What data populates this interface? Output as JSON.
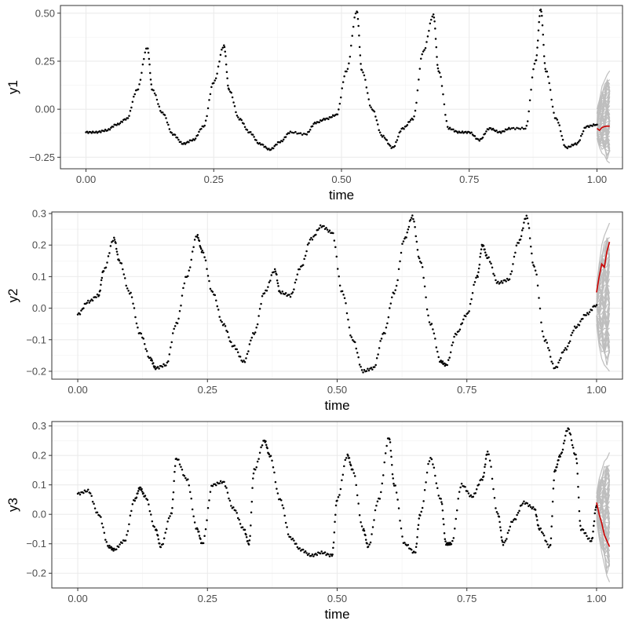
{
  "chart_data": [
    {
      "type": "line",
      "xlabel": "time",
      "ylabel": "y1",
      "xlim": [
        -0.05,
        1.05
      ],
      "ylim": [
        -0.31,
        0.54
      ],
      "x_ticks": [
        "0.00",
        "0.25",
        "0.50",
        "0.75",
        "1.00"
      ],
      "y_ticks": [
        "-0.25",
        "0.00",
        "0.25",
        "0.50"
      ],
      "grid": true,
      "observed_points": [
        [
          0.0,
          -0.12
        ],
        [
          0.02,
          -0.12
        ],
        [
          0.04,
          -0.11
        ],
        [
          0.06,
          -0.08
        ],
        [
          0.08,
          -0.05
        ],
        [
          0.1,
          0.1
        ],
        [
          0.12,
          0.32
        ],
        [
          0.13,
          0.1
        ],
        [
          0.15,
          -0.02
        ],
        [
          0.17,
          -0.13
        ],
        [
          0.19,
          -0.18
        ],
        [
          0.21,
          -0.16
        ],
        [
          0.23,
          -0.09
        ],
        [
          0.25,
          0.14
        ],
        [
          0.27,
          0.33
        ],
        [
          0.28,
          0.1
        ],
        [
          0.3,
          -0.05
        ],
        [
          0.32,
          -0.12
        ],
        [
          0.34,
          -0.18
        ],
        [
          0.36,
          -0.21
        ],
        [
          0.38,
          -0.17
        ],
        [
          0.4,
          -0.12
        ],
        [
          0.43,
          -0.13
        ],
        [
          0.45,
          -0.07
        ],
        [
          0.47,
          -0.05
        ],
        [
          0.49,
          -0.03
        ],
        [
          0.51,
          0.2
        ],
        [
          0.53,
          0.51
        ],
        [
          0.54,
          0.2
        ],
        [
          0.56,
          0.0
        ],
        [
          0.58,
          -0.14
        ],
        [
          0.6,
          -0.2
        ],
        [
          0.62,
          -0.1
        ],
        [
          0.64,
          -0.05
        ],
        [
          0.66,
          0.3
        ],
        [
          0.68,
          0.49
        ],
        [
          0.69,
          0.2
        ],
        [
          0.71,
          -0.1
        ],
        [
          0.73,
          -0.12
        ],
        [
          0.75,
          -0.12
        ],
        [
          0.77,
          -0.16
        ],
        [
          0.79,
          -0.1
        ],
        [
          0.81,
          -0.12
        ],
        [
          0.83,
          -0.1
        ],
        [
          0.86,
          -0.1
        ],
        [
          0.88,
          0.25
        ],
        [
          0.89,
          0.52
        ],
        [
          0.9,
          0.2
        ],
        [
          0.92,
          -0.05
        ],
        [
          0.94,
          -0.2
        ],
        [
          0.96,
          -0.18
        ],
        [
          0.98,
          -0.09
        ],
        [
          1.0,
          -0.08
        ]
      ],
      "point_color": "#000000",
      "forecast": {
        "color": "#cc0000",
        "x": [
          1.0,
          1.005,
          1.01,
          1.015,
          1.02,
          1.025
        ],
        "y": [
          -0.1,
          -0.11,
          -0.095,
          -0.09,
          -0.088,
          -0.088
        ]
      },
      "forecast_band": {
        "color": "#bebebe",
        "x": [
          1.0,
          1.005,
          1.01,
          1.015,
          1.02,
          1.025
        ],
        "lower": [
          -0.15,
          -0.2,
          -0.23,
          -0.24,
          -0.27,
          -0.28
        ],
        "upper": [
          0.0,
          0.05,
          0.12,
          0.15,
          0.18,
          0.2
        ]
      }
    },
    {
      "type": "line",
      "xlabel": "time",
      "ylabel": "y2",
      "xlim": [
        -0.05,
        1.05
      ],
      "ylim": [
        -0.225,
        0.305
      ],
      "x_ticks": [
        "0.00",
        "0.25",
        "0.50",
        "0.75",
        "1.00"
      ],
      "y_ticks": [
        "-0.2",
        "-0.1",
        "0.0",
        "0.1",
        "0.2",
        "0.3"
      ],
      "grid": true,
      "observed_points": [
        [
          0.0,
          -0.02
        ],
        [
          0.02,
          0.02
        ],
        [
          0.04,
          0.04
        ],
        [
          0.05,
          0.12
        ],
        [
          0.07,
          0.22
        ],
        [
          0.08,
          0.15
        ],
        [
          0.1,
          0.05
        ],
        [
          0.12,
          -0.08
        ],
        [
          0.14,
          -0.16
        ],
        [
          0.15,
          -0.19
        ],
        [
          0.17,
          -0.18
        ],
        [
          0.19,
          -0.05
        ],
        [
          0.21,
          0.1
        ],
        [
          0.23,
          0.23
        ],
        [
          0.24,
          0.18
        ],
        [
          0.26,
          0.05
        ],
        [
          0.28,
          -0.05
        ],
        [
          0.3,
          -0.12
        ],
        [
          0.32,
          -0.17
        ],
        [
          0.34,
          -0.08
        ],
        [
          0.36,
          0.05
        ],
        [
          0.38,
          0.12
        ],
        [
          0.39,
          0.05
        ],
        [
          0.41,
          0.04
        ],
        [
          0.43,
          0.13
        ],
        [
          0.45,
          0.22
        ],
        [
          0.47,
          0.26
        ],
        [
          0.49,
          0.24
        ],
        [
          0.51,
          0.05
        ],
        [
          0.53,
          -0.1
        ],
        [
          0.55,
          -0.2
        ],
        [
          0.57,
          -0.19
        ],
        [
          0.59,
          -0.08
        ],
        [
          0.61,
          0.05
        ],
        [
          0.63,
          0.22
        ],
        [
          0.645,
          0.29
        ],
        [
          0.66,
          0.15
        ],
        [
          0.68,
          -0.05
        ],
        [
          0.7,
          -0.17
        ],
        [
          0.71,
          -0.18
        ],
        [
          0.73,
          -0.08
        ],
        [
          0.75,
          -0.02
        ],
        [
          0.77,
          0.1
        ],
        [
          0.78,
          0.2
        ],
        [
          0.79,
          0.16
        ],
        [
          0.81,
          0.08
        ],
        [
          0.83,
          0.09
        ],
        [
          0.85,
          0.21
        ],
        [
          0.865,
          0.29
        ],
        [
          0.88,
          0.13
        ],
        [
          0.9,
          -0.1
        ],
        [
          0.92,
          -0.19
        ],
        [
          0.94,
          -0.13
        ],
        [
          0.96,
          -0.06
        ],
        [
          0.98,
          -0.02
        ],
        [
          1.0,
          0.01
        ]
      ],
      "point_color": "#000000",
      "forecast": {
        "color": "#cc0000",
        "x": [
          1.0,
          1.005,
          1.01,
          1.015,
          1.02,
          1.025
        ],
        "y": [
          0.05,
          0.1,
          0.14,
          0.13,
          0.18,
          0.21
        ]
      },
      "forecast_band": {
        "color": "#bebebe",
        "x": [
          1.0,
          1.005,
          1.01,
          1.015,
          1.02,
          1.025
        ],
        "lower": [
          -0.05,
          -0.12,
          -0.16,
          -0.18,
          -0.19,
          -0.2
        ],
        "upper": [
          0.07,
          0.14,
          0.2,
          0.23,
          0.25,
          0.27
        ]
      }
    },
    {
      "type": "line",
      "xlabel": "time",
      "ylabel": "y3",
      "xlim": [
        -0.05,
        1.05
      ],
      "ylim": [
        -0.25,
        0.315
      ],
      "x_ticks": [
        "0.00",
        "0.25",
        "0.50",
        "0.75",
        "1.00"
      ],
      "y_ticks": [
        "-0.2",
        "-0.1",
        "0.0",
        "0.1",
        "0.2",
        "0.3"
      ],
      "grid": true,
      "observed_points": [
        [
          0.0,
          0.07
        ],
        [
          0.02,
          0.08
        ],
        [
          0.04,
          0.0
        ],
        [
          0.06,
          -0.11
        ],
        [
          0.07,
          -0.12
        ],
        [
          0.09,
          -0.09
        ],
        [
          0.11,
          0.05
        ],
        [
          0.12,
          0.09
        ],
        [
          0.13,
          0.06
        ],
        [
          0.15,
          -0.05
        ],
        [
          0.16,
          -0.11
        ],
        [
          0.18,
          0.0
        ],
        [
          0.19,
          0.19
        ],
        [
          0.21,
          0.12
        ],
        [
          0.23,
          -0.05
        ],
        [
          0.24,
          -0.1
        ],
        [
          0.26,
          0.1
        ],
        [
          0.28,
          0.11
        ],
        [
          0.3,
          0.02
        ],
        [
          0.32,
          -0.05
        ],
        [
          0.33,
          -0.1
        ],
        [
          0.34,
          0.15
        ],
        [
          0.36,
          0.25
        ],
        [
          0.37,
          0.2
        ],
        [
          0.39,
          0.05
        ],
        [
          0.41,
          -0.08
        ],
        [
          0.43,
          -0.12
        ],
        [
          0.45,
          -0.14
        ],
        [
          0.47,
          -0.13
        ],
        [
          0.49,
          -0.14
        ],
        [
          0.5,
          0.05
        ],
        [
          0.52,
          0.2
        ],
        [
          0.53,
          0.15
        ],
        [
          0.55,
          -0.05
        ],
        [
          0.56,
          -0.11
        ],
        [
          0.58,
          0.05
        ],
        [
          0.6,
          0.26
        ],
        [
          0.61,
          0.1
        ],
        [
          0.63,
          -0.1
        ],
        [
          0.65,
          -0.13
        ],
        [
          0.66,
          0.0
        ],
        [
          0.68,
          0.19
        ],
        [
          0.7,
          0.05
        ],
        [
          0.71,
          -0.1
        ],
        [
          0.72,
          -0.1
        ],
        [
          0.74,
          0.1
        ],
        [
          0.76,
          0.06
        ],
        [
          0.78,
          0.12
        ],
        [
          0.79,
          0.21
        ],
        [
          0.81,
          0.0
        ],
        [
          0.82,
          -0.1
        ],
        [
          0.84,
          -0.02
        ],
        [
          0.86,
          0.04
        ],
        [
          0.88,
          0.02
        ],
        [
          0.89,
          -0.05
        ],
        [
          0.91,
          -0.11
        ],
        [
          0.92,
          0.15
        ],
        [
          0.93,
          0.2
        ],
        [
          0.945,
          0.29
        ],
        [
          0.96,
          0.2
        ],
        [
          0.97,
          -0.05
        ],
        [
          0.99,
          -0.09
        ],
        [
          1.0,
          0.03
        ]
      ],
      "point_color": "#000000",
      "forecast": {
        "color": "#cc0000",
        "x": [
          1.0,
          1.005,
          1.01,
          1.015,
          1.02,
          1.025
        ],
        "y": [
          0.04,
          0.0,
          -0.03,
          -0.07,
          -0.09,
          -0.11
        ]
      },
      "forecast_band": {
        "color": "#bebebe",
        "x": [
          1.0,
          1.005,
          1.01,
          1.015,
          1.02,
          1.025
        ],
        "lower": [
          -0.02,
          -0.08,
          -0.13,
          -0.17,
          -0.21,
          -0.23
        ],
        "upper": [
          0.07,
          0.12,
          0.15,
          0.18,
          0.19,
          0.21
        ]
      }
    }
  ]
}
